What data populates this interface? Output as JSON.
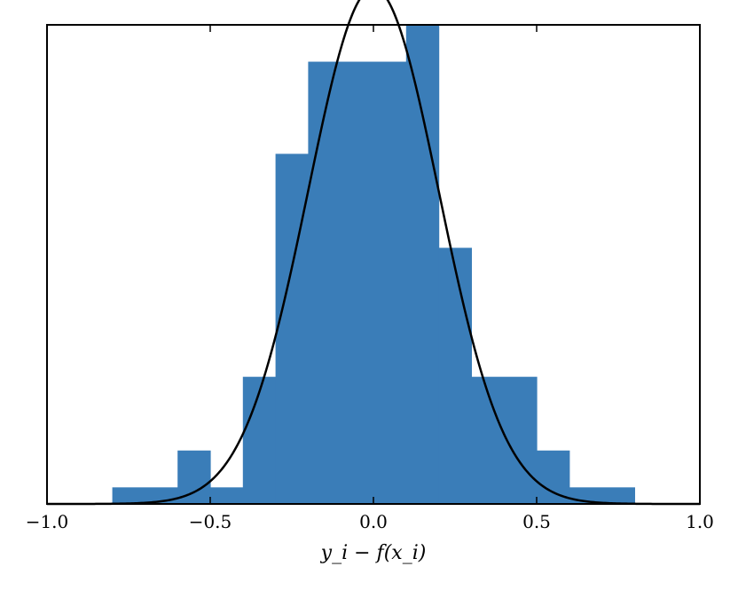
{
  "chart_data": {
    "type": "bar",
    "subtype": "histogram-with-density-curve",
    "title": "",
    "xlabel": "y_i − f(x_i)",
    "ylabel": "",
    "xlim": [
      -1.0,
      1.0
    ],
    "ylim": [
      0,
      13.0
    ],
    "x_ticks": [
      -1.0,
      -0.5,
      0.0,
      0.5,
      1.0
    ],
    "x_tick_labels": [
      "−1.0",
      "−0.5",
      "0.0",
      "0.5",
      "1.0"
    ],
    "y_ticks_shown": false,
    "grid": false,
    "legend": "none",
    "bins": [
      {
        "x0": -0.8,
        "x1": -0.6,
        "height": 0.45
      },
      {
        "x0": -0.6,
        "x1": -0.5,
        "height": 1.45
      },
      {
        "x0": -0.5,
        "x1": -0.4,
        "height": 0.45
      },
      {
        "x0": -0.4,
        "x1": -0.3,
        "height": 3.45
      },
      {
        "x0": -0.3,
        "x1": -0.2,
        "height": 9.5
      },
      {
        "x0": -0.2,
        "x1": 0.1,
        "height": 12.0
      },
      {
        "x0": 0.1,
        "x1": 0.2,
        "height": 13.0
      },
      {
        "x0": 0.2,
        "x1": 0.3,
        "height": 6.95
      },
      {
        "x0": 0.3,
        "x1": 0.5,
        "height": 3.45
      },
      {
        "x0": 0.5,
        "x1": 0.6,
        "height": 1.45
      },
      {
        "x0": 0.6,
        "x1": 0.8,
        "height": 0.45
      }
    ],
    "curve": {
      "type": "normal-pdf",
      "mean": 0.0,
      "sigma": 0.2,
      "peak": 14.0
    },
    "colors": {
      "bars": "#3a7db8",
      "curve": "#000000",
      "frame": "#000000"
    }
  }
}
